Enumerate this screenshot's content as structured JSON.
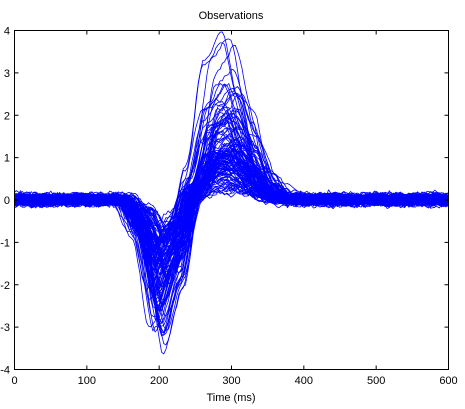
{
  "chart_data": {
    "type": "line",
    "title": "Observations",
    "xlabel": "Time (ms)",
    "ylabel": "",
    "xlim": [
      0,
      600
    ],
    "ylim": [
      -4,
      4
    ],
    "x_ticks": [
      0,
      100,
      200,
      300,
      400,
      500,
      600
    ],
    "y_ticks": [
      -4,
      -3,
      -2,
      -1,
      0,
      1,
      2,
      3,
      4
    ],
    "grid": false,
    "legend": "none",
    "line_color": "#0000ff",
    "axis_color": "#000000",
    "series_count": 120,
    "series_description_points": {
      "x": [
        0,
        150,
        175,
        200,
        225,
        250,
        275,
        300,
        325,
        350,
        375,
        400,
        600
      ],
      "representative_profiles": [
        {
          "values": [
            0.0,
            0.0,
            -0.8,
            -2.7,
            -1.6,
            0.4,
            1.9,
            2.3,
            1.3,
            0.4,
            0.1,
            0.0,
            0.0
          ]
        },
        {
          "values": [
            0.0,
            0.0,
            -0.5,
            -1.8,
            -1.0,
            0.6,
            2.8,
            3.3,
            2.0,
            0.6,
            0.1,
            0.0,
            0.0
          ]
        },
        {
          "values": [
            0.0,
            0.0,
            -0.3,
            -1.2,
            -0.6,
            0.3,
            1.1,
            1.2,
            0.7,
            0.2,
            0.0,
            0.0,
            0.0
          ]
        },
        {
          "values": [
            0.0,
            0.0,
            -0.9,
            -3.0,
            -1.8,
            0.1,
            0.9,
            1.0,
            0.6,
            0.1,
            0.0,
            0.0,
            0.0
          ]
        }
      ],
      "baseline_noise_amplitude": 0.2
    }
  }
}
